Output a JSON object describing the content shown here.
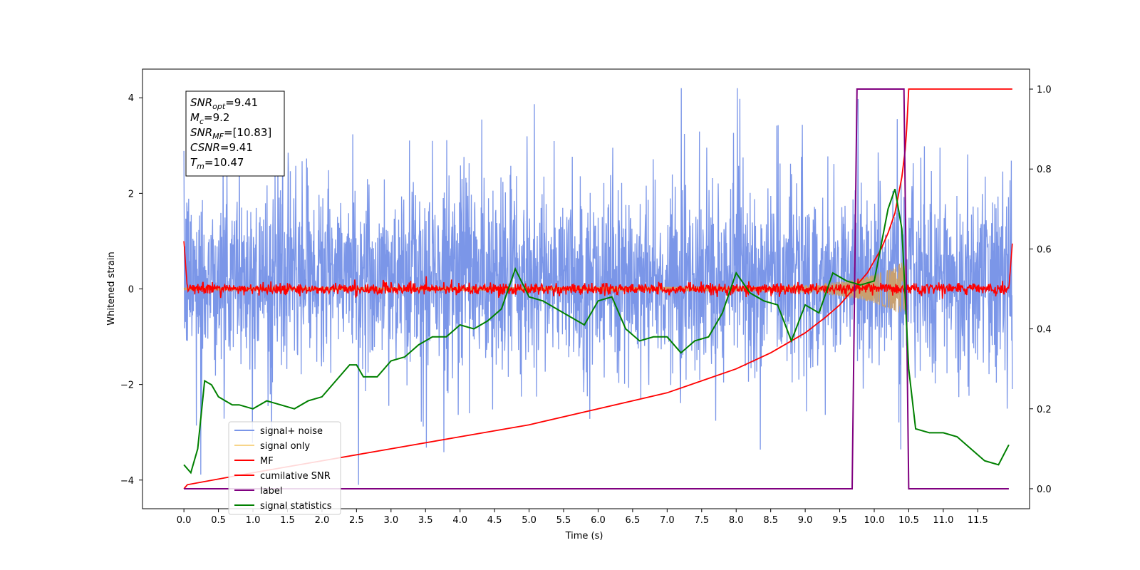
{
  "chart_data": {
    "type": "line",
    "xlabel": "Time (s)",
    "ylabel": "Whitened strain",
    "xlim": [
      -0.6,
      12.25
    ],
    "ylim": [
      -4.6,
      4.6
    ],
    "y2lim": [
      -0.05,
      1.05
    ],
    "xticks": [
      "0.0",
      "0.5",
      "1.0",
      "1.5",
      "2.0",
      "2.5",
      "3.0",
      "3.5",
      "4.0",
      "4.5",
      "5.0",
      "5.5",
      "6.0",
      "6.5",
      "7.0",
      "7.5",
      "8.0",
      "8.5",
      "9.0",
      "9.5",
      "10.0",
      "10.5",
      "11.0",
      "11.5"
    ],
    "yticks": [
      "−4",
      "−2",
      "0",
      "2",
      "4"
    ],
    "y2ticks": [
      "0.0",
      "0.2",
      "0.4",
      "0.6",
      "0.8",
      "1.0"
    ],
    "legend_position": "lower-left",
    "annotation": [
      {
        "name": "SNR",
        "sub": "opt",
        "value": "=9.41"
      },
      {
        "name": "M",
        "sub": "c",
        "value": "=9.2"
      },
      {
        "name": "SNR",
        "sub": "MF",
        "value": "=[10.83]"
      },
      {
        "name": "CSNR",
        "sub": "",
        "value": "=9.41"
      },
      {
        "name": "T",
        "sub": "m",
        "value": "=10.47"
      }
    ],
    "series": [
      {
        "name": "signal+ noise",
        "color": "#7b96e8",
        "axis": "left",
        "kind": "noise",
        "envelope": [
          -1.9,
          3.9
        ],
        "x_range": [
          0.0,
          12.0
        ]
      },
      {
        "name": "signal only",
        "color": "#f7d58a",
        "axis": "left",
        "kind": "chirp",
        "envelope_x": [
          0.0,
          8.5,
          9.0,
          9.5,
          9.8,
          10.0,
          10.2,
          10.35,
          10.45,
          10.47
        ],
        "envelope_y": [
          0.02,
          0.05,
          0.08,
          0.15,
          0.22,
          0.3,
          0.4,
          0.52,
          0.6,
          0.0
        ]
      },
      {
        "name": "MF",
        "color": "#ff0000",
        "axis": "left",
        "kind": "mf",
        "x_range": [
          0.0,
          12.0
        ],
        "edge_peak": 1.0
      },
      {
        "name": "cumilative SNR",
        "color": "#ff0000",
        "axis": "right",
        "x": [
          0.0,
          0.05,
          1.0,
          2.0,
          3.0,
          4.0,
          5.0,
          6.0,
          7.0,
          7.5,
          8.0,
          8.5,
          9.0,
          9.3,
          9.5,
          9.7,
          9.9,
          10.0,
          10.1,
          10.2,
          10.3,
          10.4,
          10.45,
          10.47,
          10.5,
          12.0
        ],
        "y": [
          0.0,
          0.01,
          0.04,
          0.07,
          0.1,
          0.13,
          0.16,
          0.2,
          0.24,
          0.27,
          0.3,
          0.34,
          0.39,
          0.43,
          0.46,
          0.5,
          0.54,
          0.57,
          0.6,
          0.64,
          0.69,
          0.78,
          0.85,
          0.9,
          1.0,
          1.0
        ]
      },
      {
        "name": "label",
        "color": "#800080",
        "axis": "right",
        "x": [
          0.0,
          9.68,
          9.75,
          10.43,
          10.5,
          11.95
        ],
        "y": [
          0.0,
          0.0,
          1.0,
          1.0,
          0.0,
          0.0
        ]
      },
      {
        "name": "signal statistics",
        "color": "#008000",
        "axis": "right",
        "x": [
          0.0,
          0.1,
          0.2,
          0.3,
          0.4,
          0.5,
          0.6,
          0.7,
          0.8,
          1.0,
          1.2,
          1.4,
          1.6,
          1.8,
          2.0,
          2.2,
          2.4,
          2.5,
          2.6,
          2.8,
          3.0,
          3.2,
          3.4,
          3.6,
          3.8,
          4.0,
          4.2,
          4.4,
          4.6,
          4.8,
          5.0,
          5.2,
          5.5,
          5.8,
          6.0,
          6.2,
          6.4,
          6.6,
          6.8,
          7.0,
          7.2,
          7.4,
          7.6,
          7.8,
          8.0,
          8.2,
          8.4,
          8.6,
          8.8,
          9.0,
          9.2,
          9.4,
          9.6,
          9.8,
          10.0,
          10.2,
          10.3,
          10.4,
          10.5,
          10.6,
          10.8,
          11.0,
          11.2,
          11.4,
          11.6,
          11.8,
          11.95
        ],
        "y": [
          0.06,
          0.04,
          0.1,
          0.27,
          0.26,
          0.23,
          0.22,
          0.21,
          0.21,
          0.2,
          0.22,
          0.21,
          0.2,
          0.22,
          0.23,
          0.27,
          0.31,
          0.31,
          0.28,
          0.28,
          0.32,
          0.33,
          0.36,
          0.38,
          0.38,
          0.41,
          0.4,
          0.42,
          0.45,
          0.55,
          0.48,
          0.47,
          0.44,
          0.41,
          0.47,
          0.48,
          0.4,
          0.37,
          0.38,
          0.38,
          0.34,
          0.37,
          0.38,
          0.44,
          0.54,
          0.49,
          0.47,
          0.46,
          0.37,
          0.46,
          0.44,
          0.54,
          0.52,
          0.51,
          0.52,
          0.7,
          0.75,
          0.65,
          0.3,
          0.15,
          0.14,
          0.14,
          0.13,
          0.1,
          0.07,
          0.06,
          0.11
        ]
      }
    ]
  }
}
